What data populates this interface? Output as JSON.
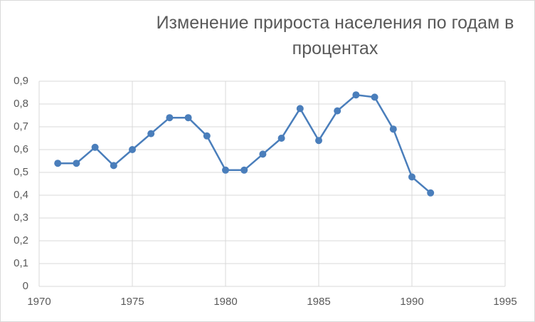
{
  "chart_data": {
    "type": "line",
    "title": "Изменение прироста населения по годам в процентах",
    "x": [
      1971,
      1972,
      1973,
      1974,
      1975,
      1976,
      1977,
      1978,
      1979,
      1980,
      1981,
      1982,
      1983,
      1984,
      1985,
      1986,
      1987,
      1988,
      1989,
      1990,
      1991
    ],
    "series": [
      {
        "color": "#4a7ebb",
        "values": [
          0.54,
          0.54,
          0.61,
          0.53,
          0.6,
          0.67,
          0.74,
          0.74,
          0.66,
          0.51,
          0.51,
          0.58,
          0.65,
          0.78,
          0.64,
          0.77,
          0.84,
          0.83,
          0.69,
          0.48,
          0.41
        ]
      }
    ],
    "xlim": [
      1970,
      1995
    ],
    "xticks": [
      1970,
      1975,
      1980,
      1985,
      1990,
      1995
    ],
    "ylim": [
      0,
      0.9
    ],
    "yticks": [
      0,
      {
        "value": 0.1,
        "label": "0,1"
      },
      {
        "value": 0.2,
        "label": "0,2"
      },
      {
        "value": 0.3,
        "label": "0,3"
      },
      {
        "value": 0.4,
        "label": "0,4"
      },
      {
        "value": 0.5,
        "label": "0,5"
      },
      {
        "value": 0.6,
        "label": "0,6"
      },
      {
        "value": 0.7,
        "label": "0,7"
      },
      {
        "value": 0.8,
        "label": "0,8"
      },
      {
        "value": 0.9,
        "label": "0,9"
      }
    ],
    "grid": true
  }
}
